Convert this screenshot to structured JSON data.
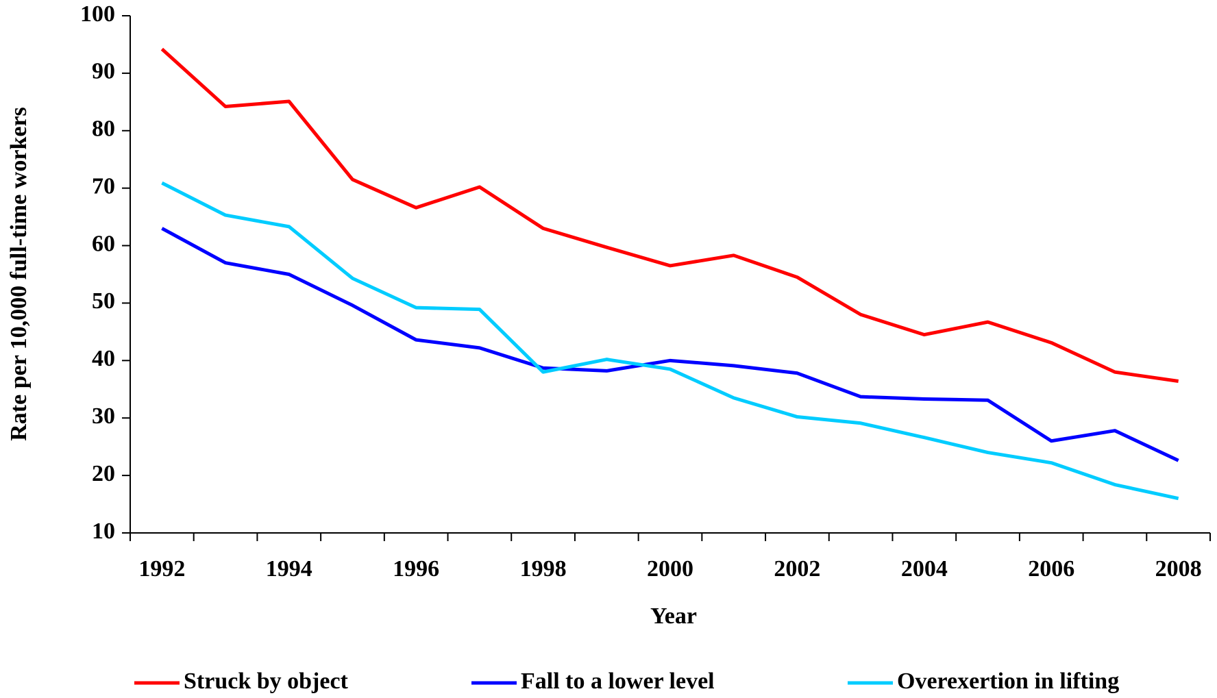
{
  "chart_data": {
    "type": "line",
    "xlabel": "Year",
    "ylabel": "Rate per 10,000 full-time workers",
    "categories": [
      "1992",
      null,
      "1994",
      null,
      "1996",
      null,
      "1998",
      null,
      "2000",
      null,
      "2002",
      null,
      "2004",
      null,
      "2006",
      null,
      "2008"
    ],
    "series": [
      {
        "name": "Struck by object",
        "color": "#ff0000",
        "values": [
          94.2,
          84.2,
          85.1,
          71.5,
          66.6,
          70.2,
          63.0,
          59.7,
          56.5,
          58.3,
          54.5,
          48.0,
          44.5,
          46.7,
          43.1,
          38.0,
          36.4
        ]
      },
      {
        "name": "Fall to a lower level",
        "color": "#0000ff",
        "values": [
          63.0,
          57.0,
          55.0,
          49.6,
          43.6,
          42.2,
          38.7,
          38.2,
          40.0,
          39.1,
          37.8,
          33.7,
          33.3,
          33.1,
          26.0,
          27.8,
          22.6
        ]
      },
      {
        "name": "Overexertion in lifting",
        "color": "#00ccff",
        "values": [
          70.9,
          65.3,
          63.3,
          54.3,
          49.2,
          48.9,
          38.0,
          40.2,
          38.5,
          33.5,
          30.2,
          29.1,
          26.6,
          24.0,
          22.2,
          18.4,
          16.0
        ]
      }
    ],
    "ylim": [
      10,
      100
    ],
    "yticks": [
      10,
      20,
      30,
      40,
      50,
      60,
      70,
      80,
      90,
      100
    ],
    "grid": false,
    "legend": "bottom"
  }
}
